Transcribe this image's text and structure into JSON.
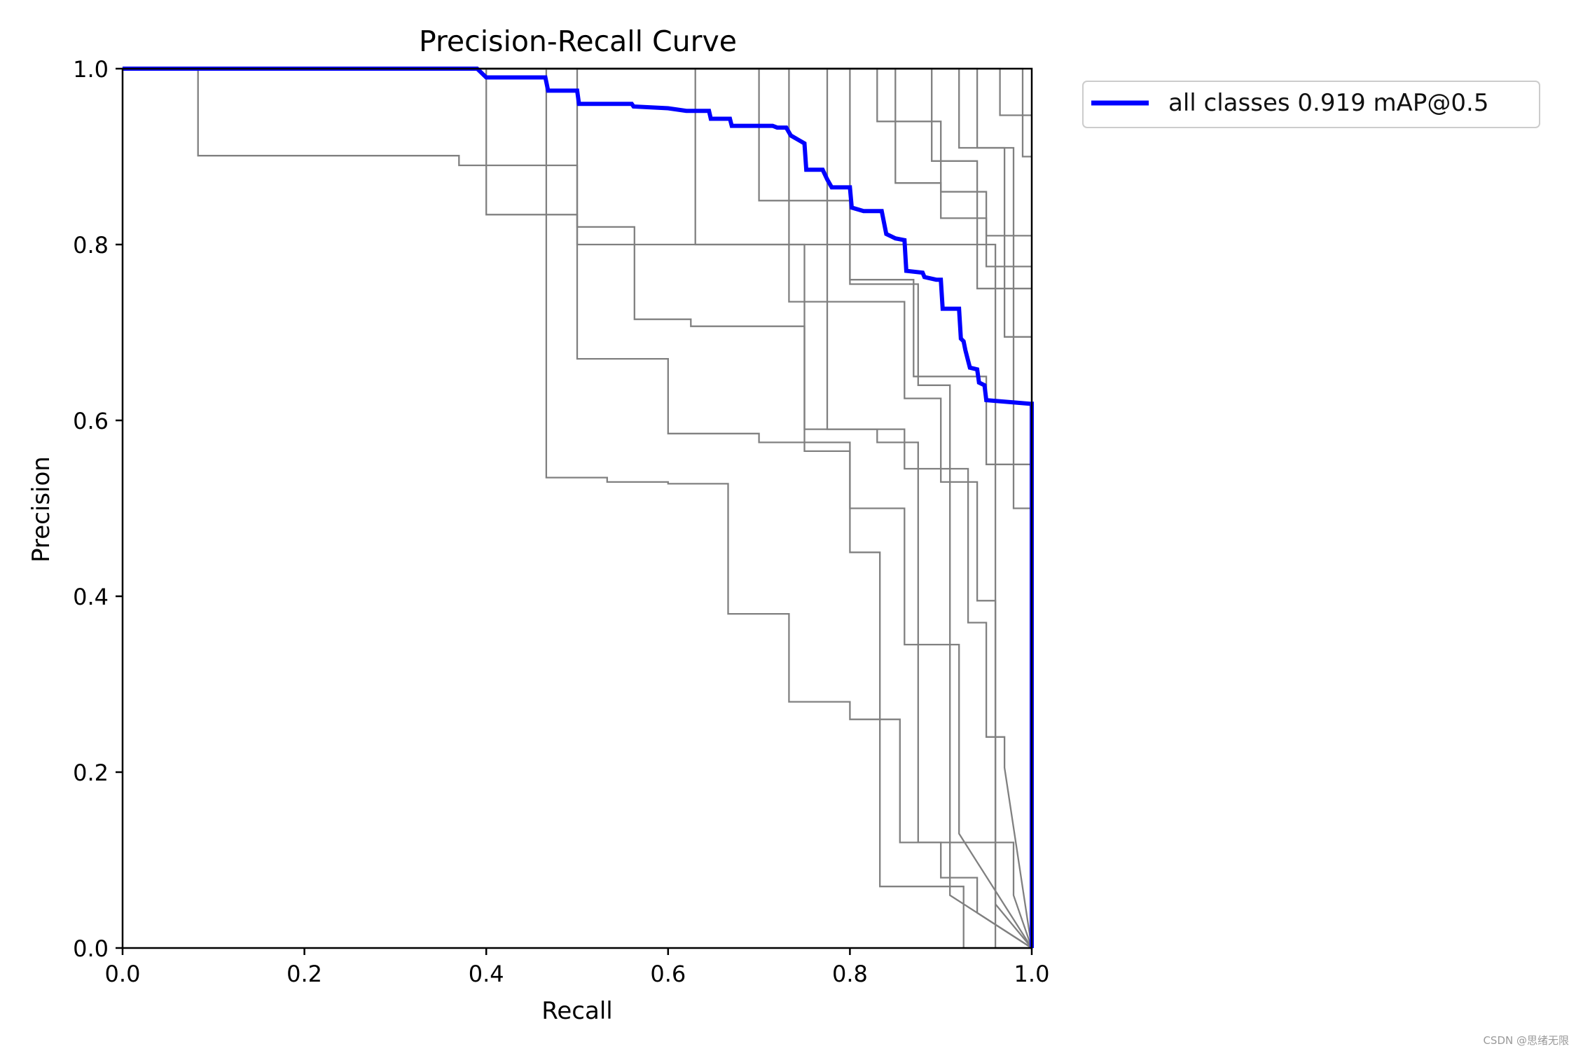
{
  "chart_data": {
    "type": "line",
    "title": "Precision-Recall Curve",
    "xlabel": "Recall",
    "ylabel": "Precision",
    "xlim": [
      0,
      1
    ],
    "ylim": [
      0,
      1
    ],
    "xticks": [
      "0.0",
      "0.2",
      "0.4",
      "0.6",
      "0.8",
      "1.0"
    ],
    "yticks": [
      "0.0",
      "0.2",
      "0.4",
      "0.6",
      "0.8",
      "1.0"
    ],
    "grid": false,
    "legend_position": "outside-top-right",
    "legend": [
      "all classes 0.919 mAP@0.5"
    ],
    "colors": {
      "mean": "#0000ff",
      "classes": "#808080"
    },
    "series": [
      {
        "name": "all classes 0.919 mAP@0.5",
        "highlight": true,
        "x": [
          0,
          0.39,
          0.4,
          0.42,
          0.465,
          0.468,
          0.5,
          0.502,
          0.56,
          0.562,
          0.6,
          0.62,
          0.645,
          0.647,
          0.668,
          0.67,
          0.715,
          0.72,
          0.73,
          0.735,
          0.75,
          0.752,
          0.77,
          0.775,
          0.78,
          0.8,
          0.802,
          0.815,
          0.835,
          0.84,
          0.85,
          0.86,
          0.862,
          0.88,
          0.882,
          0.895,
          0.9,
          0.902,
          0.92,
          0.922,
          0.925,
          0.927,
          0.93,
          0.932,
          0.94,
          0.942,
          0.948,
          0.95,
          0.998,
          1.0,
          1.0
        ],
        "y": [
          1.0,
          1.0,
          0.99,
          0.99,
          0.99,
          0.975,
          0.975,
          0.96,
          0.96,
          0.957,
          0.955,
          0.952,
          0.952,
          0.943,
          0.943,
          0.935,
          0.935,
          0.933,
          0.933,
          0.924,
          0.915,
          0.885,
          0.885,
          0.874,
          0.865,
          0.865,
          0.842,
          0.838,
          0.838,
          0.812,
          0.807,
          0.805,
          0.77,
          0.768,
          0.763,
          0.76,
          0.76,
          0.727,
          0.727,
          0.693,
          0.69,
          0.68,
          0.668,
          0.66,
          0.658,
          0.643,
          0.64,
          0.623,
          0.619,
          0.619,
          0.0
        ]
      },
      {
        "x": [
          0,
          0.083,
          0.083,
          0.37,
          0.37,
          0.5,
          0.5,
          0.96,
          0.96,
          1.0
        ],
        "y": [
          1.0,
          1.0,
          0.901,
          0.901,
          0.89,
          0.89,
          0.8,
          0.8,
          0.05,
          0.0
        ]
      },
      {
        "x": [
          0,
          0.4,
          0.4,
          0.5,
          0.5,
          0.563,
          0.563,
          0.625,
          0.625,
          0.75,
          0.75,
          0.83,
          0.83,
          0.875,
          0.875,
          0.98,
          0.98,
          1.0
        ],
        "y": [
          1.0,
          1.0,
          0.834,
          0.834,
          0.82,
          0.82,
          0.715,
          0.715,
          0.707,
          0.707,
          0.59,
          0.59,
          0.575,
          0.575,
          0.12,
          0.12,
          0.06,
          0.0
        ]
      },
      {
        "x": [
          0,
          0.466,
          0.466,
          0.533,
          0.533,
          0.6,
          0.6,
          0.666,
          0.666,
          0.733,
          0.733,
          0.8,
          0.8,
          0.855,
          0.855,
          0.9,
          0.9,
          0.94,
          0.94,
          1.0
        ],
        "y": [
          1.0,
          1.0,
          0.535,
          0.535,
          0.53,
          0.53,
          0.528,
          0.528,
          0.38,
          0.38,
          0.28,
          0.28,
          0.26,
          0.26,
          0.12,
          0.12,
          0.08,
          0.08,
          0.04,
          0.0
        ]
      },
      {
        "x": [
          0,
          0.5,
          0.5,
          0.6,
          0.6,
          0.7,
          0.7,
          0.8,
          0.8,
          0.86,
          0.86,
          0.92,
          0.92,
          1.0
        ],
        "y": [
          1.0,
          1.0,
          0.67,
          0.67,
          0.585,
          0.585,
          0.575,
          0.575,
          0.5,
          0.5,
          0.345,
          0.345,
          0.13,
          0.0
        ]
      },
      {
        "x": [
          0,
          0.63,
          0.63,
          0.75,
          0.75,
          0.8,
          0.8,
          0.833,
          0.833,
          0.925,
          0.925,
          1.0
        ],
        "y": [
          1.0,
          1.0,
          0.8,
          0.8,
          0.565,
          0.565,
          0.45,
          0.45,
          0.07,
          0.07,
          0.0,
          0.0
        ]
      },
      {
        "x": [
          0,
          0.7,
          0.7,
          0.8,
          0.8,
          0.875,
          0.875,
          0.91,
          0.91,
          1.0
        ],
        "y": [
          1.0,
          1.0,
          0.85,
          0.85,
          0.755,
          0.755,
          0.64,
          0.64,
          0.06,
          0.0
        ]
      },
      {
        "x": [
          0,
          0.733,
          0.733,
          0.86,
          0.86,
          0.9,
          0.9,
          0.94,
          0.94,
          0.96,
          0.96,
          1.0
        ],
        "y": [
          1.0,
          1.0,
          0.735,
          0.735,
          0.625,
          0.625,
          0.53,
          0.53,
          0.395,
          0.395,
          0.0,
          0.0
        ]
      },
      {
        "x": [
          0,
          0.775,
          0.775,
          0.86,
          0.86,
          0.93,
          0.93,
          0.95,
          0.95,
          0.97,
          0.97,
          1.0
        ],
        "y": [
          1.0,
          1.0,
          0.59,
          0.59,
          0.545,
          0.545,
          0.37,
          0.37,
          0.24,
          0.24,
          0.205,
          0.0
        ]
      },
      {
        "x": [
          0,
          0.8,
          0.8,
          0.87,
          0.87,
          0.95,
          0.95,
          1.0
        ],
        "y": [
          1.0,
          1.0,
          0.76,
          0.76,
          0.65,
          0.65,
          0.55,
          0.55
        ]
      },
      {
        "x": [
          0,
          0.83,
          0.83,
          0.9,
          0.9,
          0.95,
          0.95,
          1.0
        ],
        "y": [
          1.0,
          1.0,
          0.94,
          0.94,
          0.86,
          0.86,
          0.81,
          0.81
        ]
      },
      {
        "x": [
          0,
          0.85,
          0.85,
          0.9,
          0.9,
          0.95,
          0.95,
          1.0
        ],
        "y": [
          1.0,
          1.0,
          0.87,
          0.87,
          0.83,
          0.83,
          0.775,
          0.775
        ]
      },
      {
        "x": [
          0,
          0.89,
          0.89,
          0.94,
          0.94,
          1.0
        ],
        "y": [
          1.0,
          1.0,
          0.895,
          0.895,
          0.75,
          0.75
        ]
      },
      {
        "x": [
          0,
          0.92,
          0.92,
          0.97,
          0.97,
          1.0
        ],
        "y": [
          1.0,
          1.0,
          0.91,
          0.91,
          0.695,
          0.695
        ]
      },
      {
        "x": [
          0,
          0.94,
          0.94,
          0.98,
          0.98,
          1.0
        ],
        "y": [
          1.0,
          1.0,
          0.91,
          0.91,
          0.5,
          0.5
        ]
      },
      {
        "x": [
          0,
          0.965,
          0.965,
          1.0
        ],
        "y": [
          1.0,
          1.0,
          0.947,
          0.947
        ]
      },
      {
        "x": [
          0,
          0.99,
          0.99,
          1.0
        ],
        "y": [
          1.0,
          1.0,
          0.9,
          0.9
        ]
      }
    ]
  },
  "watermark": "CSDN @思绪无限"
}
